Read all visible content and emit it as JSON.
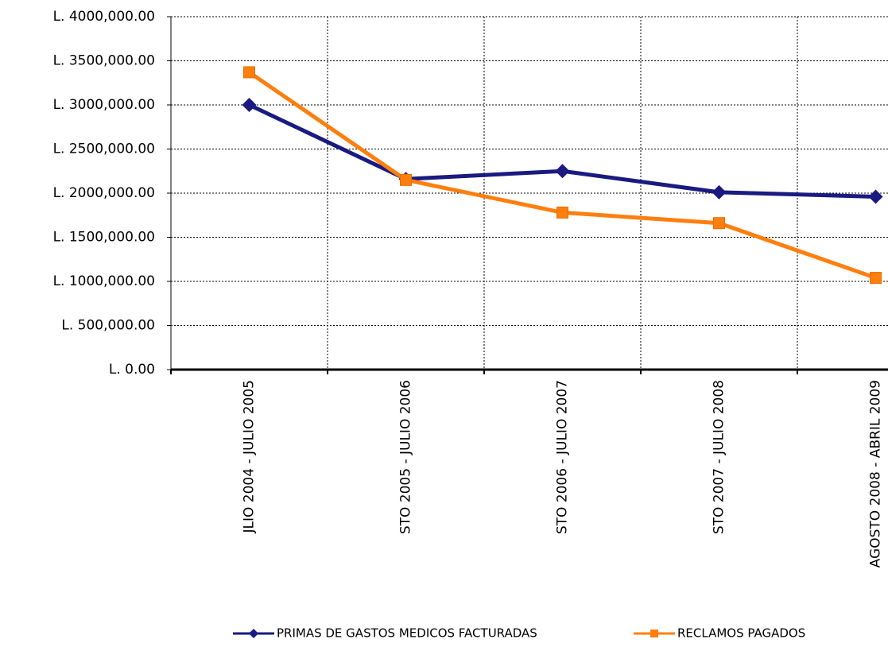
{
  "chart_data": {
    "type": "line",
    "categories": [
      "JLIO 2004 - JULIO 2005",
      "STO 2005 - JULIO 2006",
      "STO 2006 - JULIO 2007",
      "STO 2007 - JULIO 2008",
      "AGOSTO 2008 - ABRIL 2009"
    ],
    "series": [
      {
        "name": "PRIMAS DE GASTOS MEDICOS FACTURADAS",
        "color": "#1a1a80",
        "marker": "diamond",
        "values": [
          3000000,
          2160000,
          2250000,
          2010000,
          1960000
        ]
      },
      {
        "name": "RECLAMOS PAGADOS",
        "color": "#ff7f0e",
        "marker": "square",
        "values": [
          3370000,
          2150000,
          1780000,
          1660000,
          1040000
        ]
      }
    ],
    "ylim": [
      0,
      4000000
    ],
    "yticks": [
      {
        "value": 0,
        "label": "L. 0.00"
      },
      {
        "value": 500000,
        "label": "L. 500,000.00"
      },
      {
        "value": 1000000,
        "label": "L. 1000,000.00"
      },
      {
        "value": 1500000,
        "label": "L. 1500,000.00"
      },
      {
        "value": 2000000,
        "label": "L. 2000,000.00"
      },
      {
        "value": 2500000,
        "label": "L. 2500,000.00"
      },
      {
        "value": 3000000,
        "label": "L. 3000,000.00"
      },
      {
        "value": 3500000,
        "label": "L. 3500,000.00"
      },
      {
        "value": 4000000,
        "label": "L. 4000,000.00"
      }
    ],
    "grid": true,
    "legend": "bottom"
  }
}
